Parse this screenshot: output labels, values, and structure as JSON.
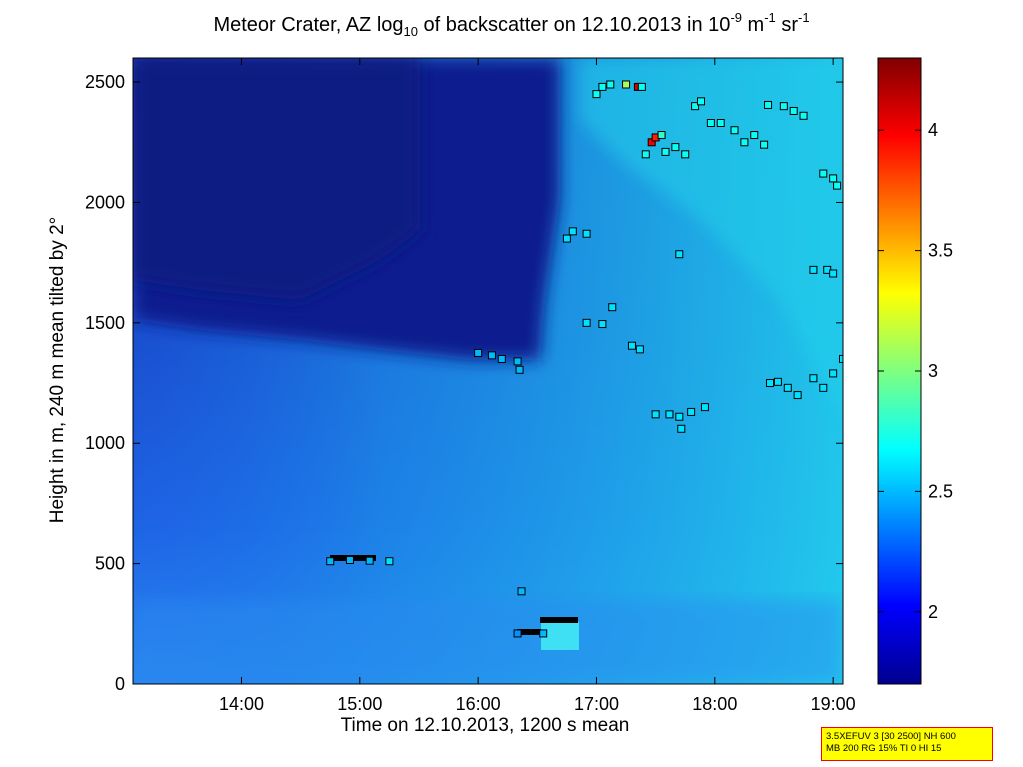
{
  "title": {
    "prefix": "Meteor Crater, AZ log",
    "sub": "10",
    "middle": " of backscatter on 12.10.2013 in 10",
    "sup1": "-9",
    "unit1": " m",
    "sup2": "-1",
    "unit2": " sr",
    "sup3": "-1"
  },
  "info_box": {
    "line1": "3.5XEFUV 3 [30 2500] NH 600",
    "line2": "MB 200 RG 15% TI 0 HI 15"
  },
  "colors": {
    "background_low": "#0a1e8c",
    "background_mid": "#1e64e6",
    "background_high": "#22d8ec",
    "marker_edge": "#000000"
  },
  "chart_data": {
    "type": "heatmap",
    "xlabel": "Time on 12.10.2013, 1200 s mean",
    "ylabel": "Height in m, 240 m mean tilted by 2°",
    "xlim": [
      "13:05",
      "19:05"
    ],
    "ylim": [
      0,
      2600
    ],
    "x_ticks": [
      "14:00",
      "15:00",
      "16:00",
      "17:00",
      "18:00",
      "19:00"
    ],
    "y_ticks": [
      "0",
      "500",
      "1000",
      "1500",
      "2000",
      "2500"
    ],
    "colorbar": {
      "range": [
        1.7,
        4.3
      ],
      "ticks": [
        "2",
        "2.5",
        "3",
        "3.5",
        "4"
      ],
      "colormap": "jet"
    },
    "field": {
      "description": "log10 backscatter: low (~1.8) in upper-left region before ~16:30 above ~1300 m, ~2.2-2.4 near ground, rising to ~2.6-2.7 after 16:45 in upper levels",
      "low_region": {
        "t_end": "16:40",
        "h_bottom": 1300,
        "value": 1.85
      },
      "ground_value": 2.2,
      "upper_right_value": 2.65
    },
    "series": [
      {
        "type": "scatter",
        "points": [
          {
            "t": "14:45",
            "h": 510,
            "v": 2.5
          },
          {
            "t": "14:55",
            "h": 515,
            "v": 2.5
          },
          {
            "t": "15:05",
            "h": 512,
            "v": 2.5
          },
          {
            "t": "15:15",
            "h": 510,
            "v": 2.6
          },
          {
            "t": "16:00",
            "h": 1375,
            "v": 2.5
          },
          {
            "t": "16:07",
            "h": 1365,
            "v": 2.5
          },
          {
            "t": "16:12",
            "h": 1350,
            "v": 2.5
          },
          {
            "t": "16:20",
            "h": 1340,
            "v": 2.5
          },
          {
            "t": "16:21",
            "h": 1305,
            "v": 2.5
          },
          {
            "t": "16:22",
            "h": 385,
            "v": 2.5
          },
          {
            "t": "16:20",
            "h": 210,
            "v": 2.4
          },
          {
            "t": "16:33",
            "h": 210,
            "v": 2.5
          },
          {
            "t": "16:45",
            "h": 1850,
            "v": 2.6
          },
          {
            "t": "16:48",
            "h": 1880,
            "v": 2.6
          },
          {
            "t": "16:55",
            "h": 1870,
            "v": 2.6
          },
          {
            "t": "16:55",
            "h": 1500,
            "v": 2.6
          },
          {
            "t": "17:03",
            "h": 1495,
            "v": 2.6
          },
          {
            "t": "17:08",
            "h": 1565,
            "v": 2.6
          },
          {
            "t": "17:00",
            "h": 2450,
            "v": 2.7
          },
          {
            "t": "17:03",
            "h": 2480,
            "v": 2.7
          },
          {
            "t": "17:07",
            "h": 2490,
            "v": 2.7
          },
          {
            "t": "17:15",
            "h": 2490,
            "v": 3.1
          },
          {
            "t": "17:21",
            "h": 2480,
            "v": 4.1
          },
          {
            "t": "17:23",
            "h": 2480,
            "v": 2.7
          },
          {
            "t": "17:18",
            "h": 1405,
            "v": 2.6
          },
          {
            "t": "17:22",
            "h": 1390,
            "v": 2.6
          },
          {
            "t": "17:25",
            "h": 2200,
            "v": 2.7
          },
          {
            "t": "17:28",
            "h": 2250,
            "v": 4.0
          },
          {
            "t": "17:30",
            "h": 2270,
            "v": 3.9
          },
          {
            "t": "17:33",
            "h": 2280,
            "v": 2.8
          },
          {
            "t": "17:35",
            "h": 2210,
            "v": 2.7
          },
          {
            "t": "17:40",
            "h": 2230,
            "v": 2.7
          },
          {
            "t": "17:45",
            "h": 2200,
            "v": 2.7
          },
          {
            "t": "17:42",
            "h": 1785,
            "v": 2.6
          },
          {
            "t": "17:30",
            "h": 1120,
            "v": 2.6
          },
          {
            "t": "17:37",
            "h": 1120,
            "v": 2.6
          },
          {
            "t": "17:42",
            "h": 1110,
            "v": 2.6
          },
          {
            "t": "17:48",
            "h": 1130,
            "v": 2.6
          },
          {
            "t": "17:55",
            "h": 1150,
            "v": 2.6
          },
          {
            "t": "17:43",
            "h": 1060,
            "v": 2.6
          },
          {
            "t": "17:50",
            "h": 2400,
            "v": 2.7
          },
          {
            "t": "17:53",
            "h": 2420,
            "v": 2.7
          },
          {
            "t": "17:58",
            "h": 2330,
            "v": 2.7
          },
          {
            "t": "18:03",
            "h": 2330,
            "v": 2.7
          },
          {
            "t": "18:10",
            "h": 2300,
            "v": 2.7
          },
          {
            "t": "18:15",
            "h": 2250,
            "v": 2.7
          },
          {
            "t": "18:20",
            "h": 2280,
            "v": 2.7
          },
          {
            "t": "18:25",
            "h": 2240,
            "v": 2.7
          },
          {
            "t": "18:27",
            "h": 2405,
            "v": 2.7
          },
          {
            "t": "18:35",
            "h": 2400,
            "v": 2.7
          },
          {
            "t": "18:40",
            "h": 2380,
            "v": 2.7
          },
          {
            "t": "18:45",
            "h": 2360,
            "v": 2.7
          },
          {
            "t": "18:28",
            "h": 1250,
            "v": 2.6
          },
          {
            "t": "18:32",
            "h": 1255,
            "v": 2.6
          },
          {
            "t": "18:37",
            "h": 1230,
            "v": 2.6
          },
          {
            "t": "18:42",
            "h": 1200,
            "v": 2.6
          },
          {
            "t": "18:50",
            "h": 1270,
            "v": 2.6
          },
          {
            "t": "18:55",
            "h": 1230,
            "v": 2.6
          },
          {
            "t": "19:00",
            "h": 1290,
            "v": 2.6
          },
          {
            "t": "19:05",
            "h": 1350,
            "v": 2.6
          },
          {
            "t": "18:50",
            "h": 1720,
            "v": 2.6
          },
          {
            "t": "18:57",
            "h": 1720,
            "v": 2.6
          },
          {
            "t": "19:00",
            "h": 1705,
            "v": 2.6
          },
          {
            "t": "18:55",
            "h": 2120,
            "v": 2.7
          },
          {
            "t": "19:00",
            "h": 2100,
            "v": 2.7
          },
          {
            "t": "19:02",
            "h": 2070,
            "v": 2.7
          }
        ]
      }
    ]
  }
}
